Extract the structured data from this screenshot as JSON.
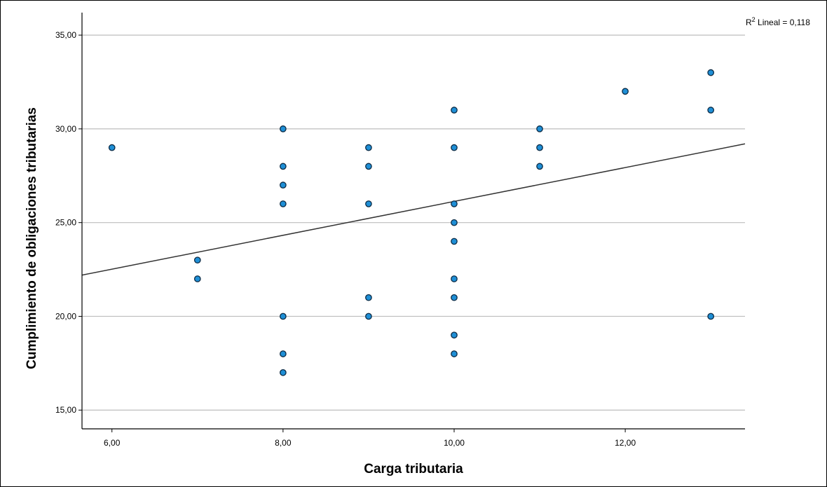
{
  "chart_data": {
    "type": "scatter",
    "xlabel": "Carga tributaria",
    "ylabel": "Cumplimiento de obligaciones tributarias",
    "xlim": [
      5.65,
      13.4
    ],
    "ylim": [
      14,
      36.2
    ],
    "x_ticks": [
      6,
      8,
      10,
      12
    ],
    "x_tick_labels": [
      "6,00",
      "8,00",
      "10,00",
      "12,00"
    ],
    "y_ticks": [
      15,
      20,
      25,
      30,
      35
    ],
    "y_tick_labels": [
      "15,00",
      "20,00",
      "25,00",
      "30,00",
      "35,00"
    ],
    "grid": "horizontal",
    "colors": {
      "point_fill": "#1f8fd6",
      "point_edge": "#0b2a44",
      "fit_line": "#333333",
      "grid": "#bdbdbd"
    },
    "points": [
      {
        "x": 6,
        "y": 29
      },
      {
        "x": 7,
        "y": 23
      },
      {
        "x": 7,
        "y": 22
      },
      {
        "x": 8,
        "y": 30
      },
      {
        "x": 8,
        "y": 28
      },
      {
        "x": 8,
        "y": 27
      },
      {
        "x": 8,
        "y": 26
      },
      {
        "x": 8,
        "y": 20
      },
      {
        "x": 8,
        "y": 18
      },
      {
        "x": 8,
        "y": 17
      },
      {
        "x": 9,
        "y": 29
      },
      {
        "x": 9,
        "y": 28
      },
      {
        "x": 9,
        "y": 26
      },
      {
        "x": 9,
        "y": 21
      },
      {
        "x": 9,
        "y": 20
      },
      {
        "x": 10,
        "y": 31
      },
      {
        "x": 10,
        "y": 29
      },
      {
        "x": 10,
        "y": 26
      },
      {
        "x": 10,
        "y": 25
      },
      {
        "x": 10,
        "y": 24
      },
      {
        "x": 10,
        "y": 22
      },
      {
        "x": 10,
        "y": 21
      },
      {
        "x": 10,
        "y": 19
      },
      {
        "x": 10,
        "y": 18
      },
      {
        "x": 11,
        "y": 30
      },
      {
        "x": 11,
        "y": 29
      },
      {
        "x": 11,
        "y": 28
      },
      {
        "x": 12,
        "y": 32
      },
      {
        "x": 13,
        "y": 33
      },
      {
        "x": 13,
        "y": 31
      },
      {
        "x": 13,
        "y": 20
      }
    ],
    "fit_line": {
      "x": [
        5.65,
        13.4
      ],
      "y": [
        22.2,
        29.2
      ]
    },
    "annotation": {
      "prefix": "R",
      "superscript": "2",
      "text": " Lineal = 0,118",
      "position": "top-right"
    }
  }
}
